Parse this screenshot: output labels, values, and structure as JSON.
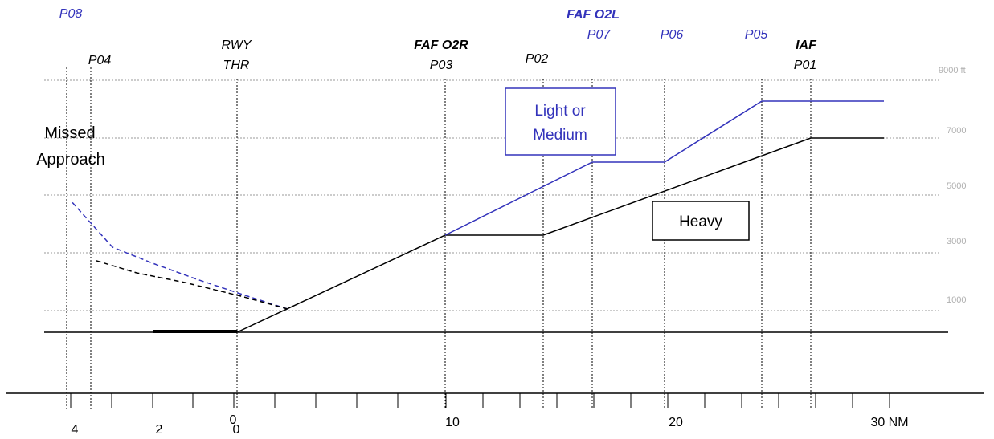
{
  "colors": {
    "light_medium": "#3333bb",
    "heavy": "#000000",
    "gridline": "#999999",
    "alt_label": "#b0b0b0"
  },
  "waypoints": {
    "p08": "P08",
    "p04": "P04",
    "rwy_thr_line1": "RWY",
    "rwy_thr_line2": "THR",
    "faf_o2r": "FAF O2R",
    "p03": "P03",
    "p02": "P02",
    "faf_o2l": "FAF O2L",
    "p07": "P07",
    "p06": "P06",
    "p05": "P05",
    "iaf": "IAF",
    "p01": "P01"
  },
  "altitude_labels": [
    "9000 ft",
    "7000",
    "5000",
    "3000",
    "1000"
  ],
  "distance_labels": [
    "4",
    "2",
    "0",
    "0",
    "10",
    "20",
    "30 NM"
  ],
  "missed_approach": {
    "line1": "Missed",
    "line2": "Approach"
  },
  "boxes": {
    "light_medium_line1": "Light or",
    "light_medium_line2": "Medium",
    "heavy": "Heavy"
  }
}
